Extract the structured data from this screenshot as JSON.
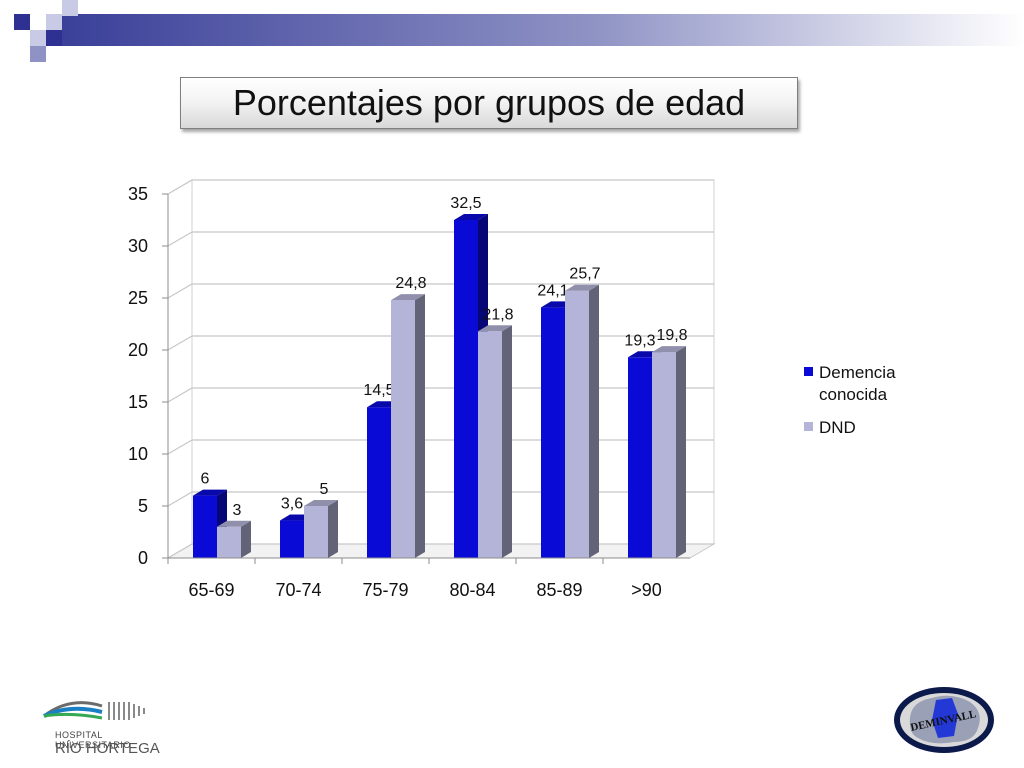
{
  "slide": {
    "title": "Porcentajes por grupos de edad"
  },
  "colors": {
    "series_1": "#0a0ad6",
    "series_2": "#b4b4d8",
    "banner": "#3a3f99"
  },
  "logos": {
    "hospital_line1": "HOSPITAL UNIVERSITARIO",
    "hospital_line2": "RÍO HORTEGA",
    "deminvall": "DEMINVALL"
  },
  "chart_data": {
    "type": "bar",
    "style": "3d-clustered",
    "title": "",
    "xlabel": "",
    "ylabel": "",
    "categories": [
      "65-69",
      "70-74",
      "75-79",
      "80-84",
      "85-89",
      ">90"
    ],
    "series": [
      {
        "name": "Demencia conocida",
        "values": [
          6,
          3.6,
          14.5,
          32.5,
          24.1,
          19.3
        ],
        "labels": [
          "6",
          "3,6",
          "14,5",
          "32,5",
          "24,1",
          "19,3"
        ]
      },
      {
        "name": "DND",
        "values": [
          3,
          5,
          24.8,
          21.8,
          25.7,
          19.8
        ],
        "labels": [
          "3",
          "5",
          "24,8",
          "21,8",
          "25,7",
          "19,8"
        ]
      }
    ],
    "ylim": [
      0,
      35
    ],
    "yticks": [
      0,
      5,
      10,
      15,
      20,
      25,
      30,
      35
    ],
    "grid": true,
    "legend": "right"
  }
}
